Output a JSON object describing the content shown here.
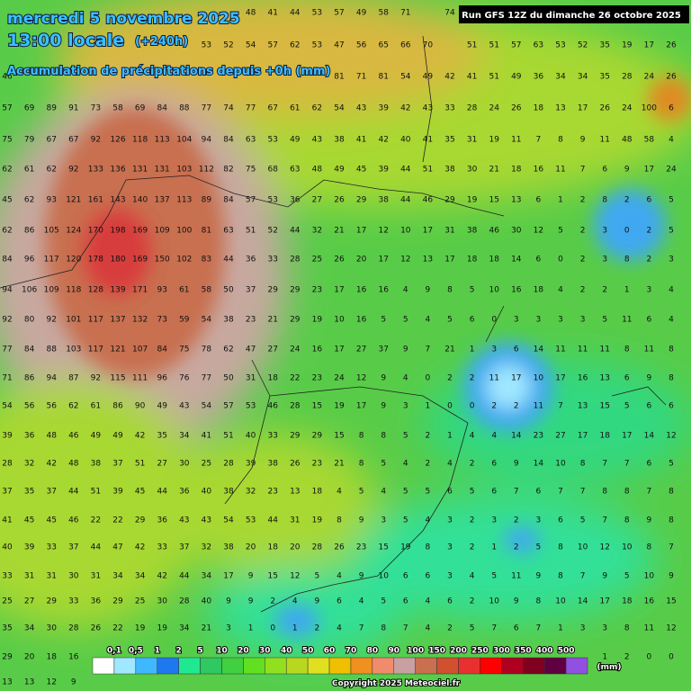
{
  "header": {
    "date": "mercredi 5 novembre 2025",
    "time": "13:00 locale",
    "lead": "(+240h)",
    "subtitle": "Accumulation de précipitations depuis +0h (mm)",
    "run": "Run GFS 12Z du dimanche 26 octobre 2025"
  },
  "grid": [
    [
      null,
      null,
      null,
      null,
      null,
      null,
      null,
      null,
      null,
      null,
      null,
      48,
      41,
      44,
      53,
      57,
      49,
      58,
      71,
      null,
      74
    ],
    [
      null,
      null,
      null,
      null,
      null,
      null,
      null,
      null,
      null,
      53,
      52,
      54,
      57,
      62,
      53,
      47,
      56,
      65,
      66,
      70,
      null,
      51,
      51,
      57,
      63,
      53,
      52,
      35,
      19,
      17,
      26
    ],
    [
      46,
      null,
      null,
      null,
      null,
      null,
      null,
      null,
      null,
      null,
      null,
      null,
      null,
      null,
      null,
      81,
      71,
      81,
      54,
      49,
      42,
      41,
      51,
      49,
      36,
      34,
      34,
      35,
      28,
      24,
      26
    ],
    [
      57,
      69,
      89,
      91,
      73,
      58,
      69,
      84,
      88,
      77,
      74,
      77,
      67,
      61,
      62,
      54,
      43,
      39,
      42,
      43,
      33,
      28,
      24,
      26,
      18,
      13,
      17,
      26,
      24,
      100,
      6
    ],
    [
      75,
      79,
      67,
      67,
      92,
      126,
      118,
      113,
      104,
      94,
      84,
      63,
      53,
      49,
      43,
      38,
      41,
      42,
      40,
      41,
      35,
      31,
      19,
      11,
      7,
      8,
      9,
      11,
      48,
      58,
      4
    ],
    [
      62,
      61,
      62,
      92,
      133,
      136,
      131,
      131,
      103,
      112,
      82,
      75,
      68,
      63,
      48,
      49,
      45,
      39,
      44,
      51,
      38,
      30,
      21,
      18,
      16,
      11,
      7,
      6,
      9,
      17,
      24
    ],
    [
      45,
      62,
      93,
      121,
      161,
      143,
      140,
      137,
      113,
      89,
      84,
      57,
      53,
      36,
      27,
      26,
      29,
      38,
      44,
      46,
      29,
      19,
      15,
      13,
      6,
      1,
      2,
      8,
      2,
      6,
      5
    ],
    [
      62,
      86,
      105,
      124,
      170,
      198,
      169,
      109,
      100,
      81,
      63,
      51,
      52,
      44,
      32,
      21,
      17,
      12,
      10,
      17,
      31,
      38,
      46,
      30,
      12,
      5,
      2,
      3,
      0,
      2,
      5
    ],
    [
      84,
      96,
      117,
      120,
      178,
      180,
      169,
      150,
      102,
      83,
      44,
      36,
      33,
      28,
      25,
      26,
      20,
      17,
      12,
      13,
      17,
      18,
      18,
      14,
      6,
      0,
      2,
      3,
      8,
      2,
      3
    ],
    [
      94,
      106,
      109,
      118,
      128,
      139,
      171,
      93,
      61,
      58,
      50,
      37,
      29,
      29,
      23,
      17,
      16,
      16,
      4,
      9,
      8,
      5,
      10,
      16,
      18,
      4,
      2,
      2,
      1,
      3,
      4
    ],
    [
      92,
      80,
      92,
      101,
      117,
      137,
      132,
      73,
      59,
      54,
      38,
      23,
      21,
      29,
      19,
      10,
      16,
      5,
      5,
      4,
      5,
      6,
      0,
      3,
      3,
      3,
      3,
      5,
      11,
      6,
      4
    ],
    [
      77,
      84,
      88,
      103,
      117,
      121,
      107,
      84,
      75,
      78,
      62,
      47,
      27,
      24,
      16,
      17,
      27,
      37,
      9,
      7,
      21,
      1,
      3,
      6,
      14,
      11,
      11,
      11,
      8,
      11,
      8
    ],
    [
      71,
      86,
      94,
      87,
      92,
      115,
      111,
      96,
      76,
      77,
      50,
      31,
      18,
      22,
      23,
      24,
      12,
      9,
      4,
      0,
      2,
      2,
      11,
      17,
      10,
      17,
      16,
      13,
      6,
      9,
      8
    ],
    [
      54,
      56,
      56,
      62,
      61,
      86,
      90,
      49,
      43,
      54,
      57,
      53,
      46,
      28,
      15,
      19,
      17,
      9,
      3,
      1,
      0,
      0,
      2,
      2,
      11,
      7,
      13,
      15,
      5,
      6,
      6
    ],
    [
      39,
      36,
      48,
      46,
      49,
      49,
      42,
      35,
      34,
      41,
      51,
      40,
      33,
      29,
      29,
      15,
      8,
      8,
      5,
      2,
      1,
      4,
      4,
      14,
      23,
      27,
      17,
      18,
      17,
      14,
      12
    ],
    [
      28,
      32,
      42,
      48,
      38,
      37,
      51,
      27,
      30,
      25,
      28,
      39,
      38,
      26,
      23,
      21,
      8,
      5,
      4,
      2,
      4,
      2,
      6,
      9,
      14,
      10,
      8,
      7,
      7,
      6,
      5
    ],
    [
      37,
      35,
      37,
      44,
      51,
      39,
      45,
      44,
      36,
      40,
      38,
      32,
      23,
      13,
      18,
      4,
      5,
      4,
      5,
      5,
      6,
      5,
      6,
      7,
      6,
      7,
      7,
      8,
      8,
      7,
      8
    ],
    [
      41,
      45,
      45,
      46,
      22,
      22,
      29,
      36,
      43,
      43,
      54,
      53,
      44,
      31,
      19,
      8,
      9,
      3,
      5,
      4,
      3,
      2,
      3,
      2,
      3,
      6,
      5,
      7,
      8,
      9,
      8
    ],
    [
      40,
      39,
      33,
      37,
      44,
      47,
      42,
      33,
      37,
      32,
      38,
      20,
      18,
      20,
      28,
      26,
      23,
      15,
      19,
      8,
      3,
      2,
      1,
      2,
      5,
      8,
      10,
      12,
      10,
      8,
      7
    ],
    [
      33,
      31,
      31,
      30,
      31,
      34,
      34,
      42,
      44,
      34,
      17,
      9,
      15,
      12,
      5,
      4,
      9,
      10,
      6,
      6,
      3,
      4,
      5,
      11,
      9,
      8,
      7,
      9,
      5,
      10,
      9
    ],
    [
      25,
      27,
      29,
      33,
      36,
      29,
      25,
      30,
      28,
      40,
      9,
      9,
      2,
      4,
      9,
      6,
      4,
      5,
      6,
      4,
      6,
      2,
      10,
      9,
      8,
      10,
      14,
      17,
      18,
      16,
      15
    ],
    [
      35,
      34,
      30,
      28,
      26,
      22,
      19,
      19,
      34,
      21,
      3,
      1,
      0,
      1,
      2,
      4,
      7,
      8,
      7,
      4,
      2,
      5,
      7,
      6,
      7,
      1,
      3,
      3,
      8,
      11,
      12
    ],
    [
      29,
      20,
      18,
      16,
      null,
      null,
      null,
      null,
      null,
      null,
      null,
      null,
      null,
      null,
      null,
      null,
      null,
      null,
      null,
      null,
      null,
      null,
      null,
      null,
      null,
      null,
      null,
      1,
      2,
      0,
      0
    ],
    [
      13,
      13,
      12,
      9
    ]
  ],
  "legend": {
    "labels": [
      "0,1",
      "0,5",
      "1",
      "2",
      "5",
      "10",
      "20",
      "30",
      "40",
      "50",
      "60",
      "70",
      "80",
      "90",
      "100",
      "150",
      "200",
      "250",
      "300",
      "350",
      "400",
      "500"
    ],
    "colors": [
      "#ffffff",
      "#a0e8ff",
      "#40b8ff",
      "#1e78f0",
      "#20e890",
      "#30c860",
      "#40d040",
      "#60e020",
      "#90e020",
      "#b8d820",
      "#e0e020",
      "#f0c000",
      "#f09020",
      "#f08c6c",
      "#c8a0a0",
      "#c87050",
      "#d05030",
      "#e83030",
      "#ff0000",
      "#b00020",
      "#800020",
      "#600040",
      "#9050e0"
    ],
    "unit": "(mm)"
  },
  "copyright": "Copyright 2025 Meteociel.fr"
}
